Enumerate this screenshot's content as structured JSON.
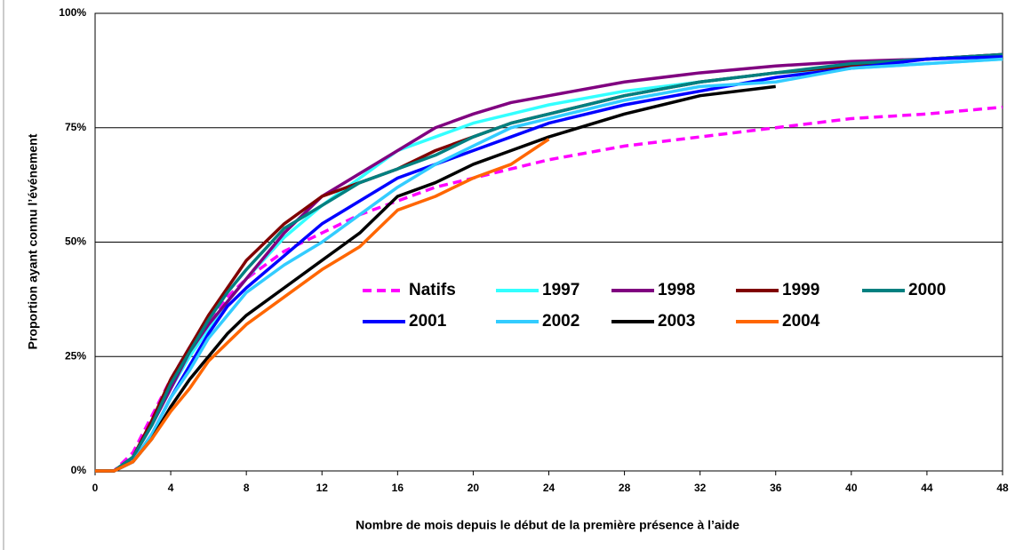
{
  "chart_data": {
    "type": "line",
    "xlabel": "Nombre de mois depuis le début de la première présence à l’aide",
    "ylabel": "Proportion ayant connu l’événement",
    "x": [
      0,
      1,
      2,
      3,
      4,
      5,
      6,
      7,
      8,
      10,
      12,
      14,
      16,
      18,
      20,
      22,
      24,
      28,
      32,
      36,
      40,
      44,
      48
    ],
    "xlim": [
      0,
      48
    ],
    "xticks": [
      0,
      4,
      8,
      12,
      16,
      20,
      24,
      28,
      32,
      36,
      40,
      44,
      48
    ],
    "ylim": [
      0,
      100
    ],
    "yticks": [
      {
        "value": 0,
        "label": "0%"
      },
      {
        "value": 25,
        "label": "25%"
      },
      {
        "value": 50,
        "label": "50%"
      },
      {
        "value": 75,
        "label": "75%"
      },
      {
        "value": 100,
        "label": "100%"
      }
    ],
    "grid": true,
    "series": [
      {
        "name": "Natifs",
        "color": "#ff00ff",
        "dashed": true,
        "values": [
          0,
          0,
          4,
          12,
          20,
          27,
          33,
          38,
          42,
          48,
          52,
          56,
          59,
          62,
          64,
          66,
          68,
          71,
          73,
          75,
          77,
          78,
          79.5
        ]
      },
      {
        "name": "1997",
        "color": "#33ffff",
        "values": [
          0,
          0,
          3,
          10,
          18,
          25,
          31,
          37,
          42,
          51,
          58,
          64,
          70,
          73,
          76,
          78,
          80,
          83,
          85,
          87,
          88,
          89,
          90
        ]
      },
      {
        "name": "1998",
        "color": "#800080",
        "values": [
          0,
          0,
          3,
          10,
          18,
          26,
          32,
          37,
          42,
          52,
          60,
          65,
          70,
          75,
          78,
          80.5,
          82,
          85,
          87,
          88.5,
          89.5,
          90,
          91
        ]
      },
      {
        "name": "1999",
        "color": "#800000",
        "values": [
          0,
          0,
          3,
          11,
          20,
          27,
          34,
          40,
          46,
          54,
          60,
          63,
          66,
          70,
          73,
          76,
          78,
          82,
          85,
          87,
          88.5,
          90,
          91
        ]
      },
      {
        "name": "2000",
        "color": "#008080",
        "values": [
          0,
          0,
          3,
          10,
          19,
          26,
          33,
          39,
          44,
          53,
          58,
          63,
          66,
          69,
          73,
          76,
          78,
          82,
          85,
          87,
          89,
          90,
          91
        ]
      },
      {
        "name": "2001",
        "color": "#0000ff",
        "values": [
          0,
          0,
          2,
          8,
          16,
          23,
          30,
          36,
          40,
          47,
          54,
          59,
          64,
          67,
          70,
          73,
          76,
          80,
          83,
          86,
          88,
          90,
          90.5
        ]
      },
      {
        "name": "2002",
        "color": "#33ccff",
        "values": [
          0,
          0,
          2,
          8,
          16,
          22,
          29,
          34,
          39,
          45,
          50,
          56,
          62,
          67,
          71,
          75,
          77,
          81,
          84,
          85,
          88,
          89,
          90
        ]
      },
      {
        "name": "2003",
        "color": "#000000",
        "values": [
          0,
          0,
          2,
          7,
          14,
          20,
          25,
          30,
          34,
          40,
          46,
          52,
          60,
          63,
          67,
          70,
          73,
          78,
          82,
          84,
          null,
          null,
          null
        ]
      },
      {
        "name": "2004",
        "color": "#ff6600",
        "values": [
          0,
          0,
          2,
          7,
          13,
          18,
          24,
          28,
          32,
          38,
          44,
          49,
          57,
          60,
          64,
          67,
          72.5,
          null,
          null,
          null,
          null,
          null,
          null
        ]
      }
    ]
  }
}
